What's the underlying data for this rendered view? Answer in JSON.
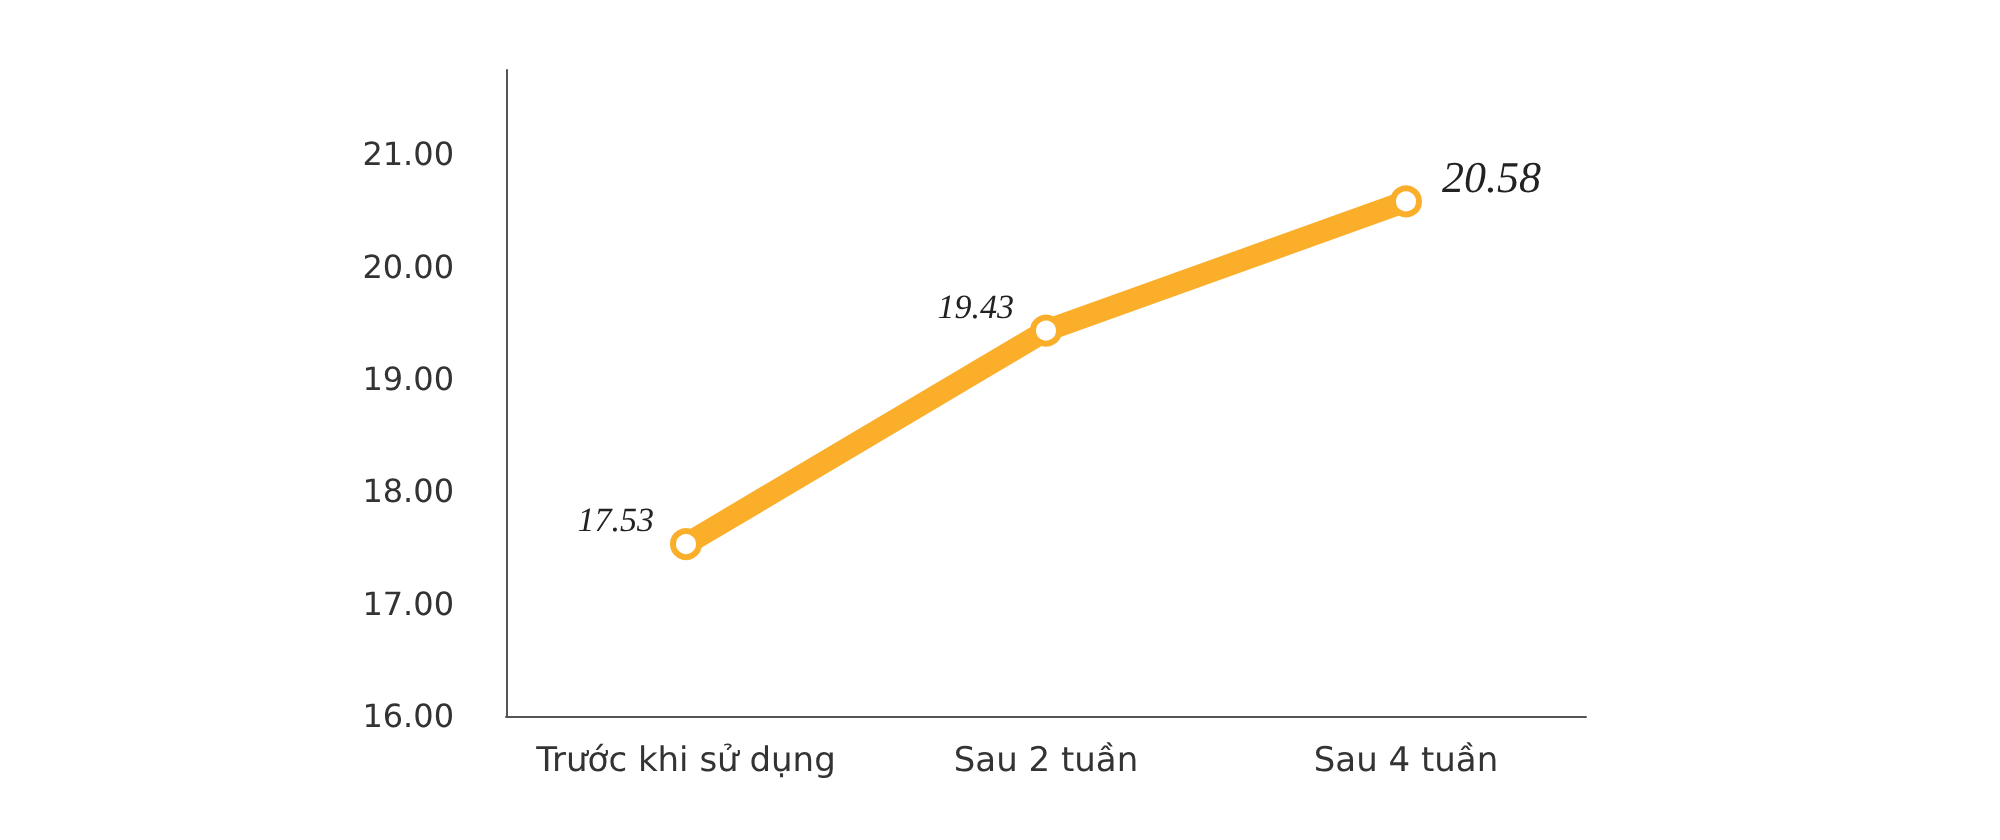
{
  "chart_data": {
    "type": "line",
    "categories": [
      "Trước khi sử dụng",
      "Sau 2 tuần",
      "Sau 4 tuần"
    ],
    "series": [
      {
        "color": "#fbae2a",
        "values": [
          17.53,
          19.43,
          20.58
        ]
      }
    ],
    "value_labels": [
      "17.53",
      "19.43",
      "20.58"
    ],
    "ylim": [
      16,
      21.75
    ],
    "yticks": [
      {
        "value": 16,
        "label": "16.00"
      },
      {
        "value": 17,
        "label": "17.00"
      },
      {
        "value": 18,
        "label": "18.00"
      },
      {
        "value": 19,
        "label": "19.00"
      },
      {
        "value": 20,
        "label": "20.00"
      },
      {
        "value": 21,
        "label": "21.00"
      }
    ],
    "grid": false,
    "marker": "circle",
    "line_style": "solid"
  }
}
